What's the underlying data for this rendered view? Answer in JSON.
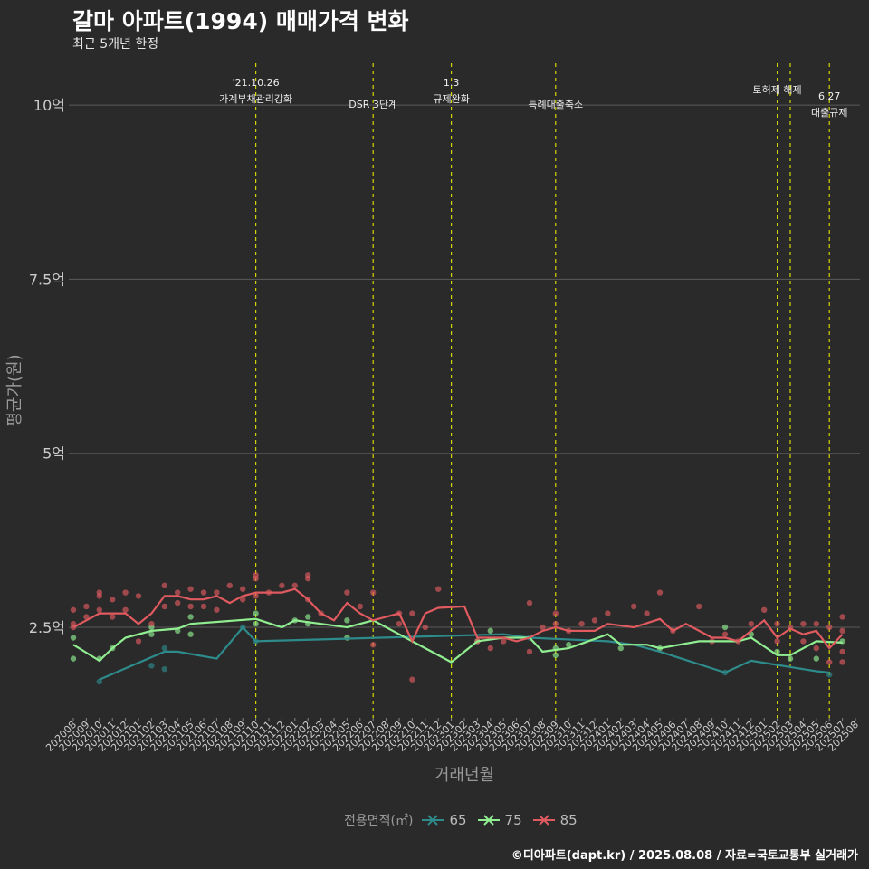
{
  "title": "갈마 아파트(1994) 매매가격 변화",
  "subtitle": "최근 5개년 한정",
  "caption": "©디아파트(dapt.kr) / 2025.08.08 / 자료=국토교통부 실거래가",
  "colors": {
    "background": "#2a2a2b",
    "s65": "#2e8b8b",
    "s75": "#90ee90",
    "s85": "#e05a5f",
    "event_line": "#d4d400",
    "grid": "#5a5a5a"
  },
  "chart_data": {
    "type": "line",
    "xlabel": "거래년월",
    "ylabel": "평균가(원)",
    "ylim": [
      1.2,
      10.6
    ],
    "yticks": [
      {
        "value": 2.5,
        "label": "2.5억"
      },
      {
        "value": 5,
        "label": "5억"
      },
      {
        "value": 7.5,
        "label": "7.5억"
      },
      {
        "value": 10,
        "label": "10억"
      }
    ],
    "x": [
      "202008",
      "202009",
      "202010",
      "202011",
      "202012",
      "202101",
      "202102",
      "202103",
      "202104",
      "202105",
      "202106",
      "202107",
      "202108",
      "202109",
      "202110",
      "202111",
      "202112",
      "202201",
      "202202",
      "202203",
      "202204",
      "202205",
      "202206",
      "202207",
      "202208",
      "202209",
      "202210",
      "202211",
      "202212",
      "202301",
      "202302",
      "202303",
      "202304",
      "202305",
      "202306",
      "202307",
      "202308",
      "202309",
      "202310",
      "202311",
      "202312",
      "202401",
      "202402",
      "202403",
      "202404",
      "202405",
      "202406",
      "202407",
      "202408",
      "202409",
      "202410",
      "202411",
      "202412",
      "202501",
      "202502",
      "202503",
      "202504",
      "202505",
      "202506",
      "202507",
      "202508"
    ],
    "legend_title": "전용면적(㎡)",
    "series": [
      {
        "name": "65",
        "color": "#2e8b8b",
        "points": [
          [
            "202010",
            1.75
          ],
          [
            "202103",
            2.15
          ],
          [
            "202104",
            2.15
          ],
          [
            "202107",
            2.05
          ],
          [
            "202109",
            2.5
          ],
          [
            "202110",
            2.3
          ],
          [
            "202305",
            2.4
          ],
          [
            "202307",
            2.35
          ],
          [
            "202401",
            2.3
          ],
          [
            "202403",
            2.25
          ],
          [
            "202405",
            2.15
          ],
          [
            "202410",
            1.85
          ],
          [
            "202412",
            2.02
          ],
          [
            "202505",
            1.87
          ],
          [
            "202506",
            1.85
          ]
        ],
        "scatter": [
          [
            "202010",
            1.72
          ],
          [
            "202102",
            1.95
          ],
          [
            "202103",
            1.9
          ],
          [
            "202103",
            2.2
          ],
          [
            "202109",
            2.5
          ],
          [
            "202110",
            2.3
          ],
          [
            "202307",
            2.35
          ],
          [
            "202410",
            1.85
          ],
          [
            "202506",
            1.82
          ]
        ]
      },
      {
        "name": "75",
        "color": "#90ee90",
        "points": [
          [
            "202008",
            2.25
          ],
          [
            "202010",
            2.02
          ],
          [
            "202011",
            2.2
          ],
          [
            "202012",
            2.35
          ],
          [
            "202102",
            2.45
          ],
          [
            "202104",
            2.48
          ],
          [
            "202105",
            2.55
          ],
          [
            "202110",
            2.62
          ],
          [
            "202112",
            2.5
          ],
          [
            "202201",
            2.6
          ],
          [
            "202203",
            2.55
          ],
          [
            "202205",
            2.5
          ],
          [
            "202207",
            2.6
          ],
          [
            "202301",
            2.0
          ],
          [
            "202303",
            2.3
          ],
          [
            "202305",
            2.35
          ],
          [
            "202307",
            2.35
          ],
          [
            "202308",
            2.15
          ],
          [
            "202310",
            2.2
          ],
          [
            "202401",
            2.4
          ],
          [
            "202402",
            2.25
          ],
          [
            "202404",
            2.25
          ],
          [
            "202405",
            2.2
          ],
          [
            "202408",
            2.3
          ],
          [
            "202411",
            2.3
          ],
          [
            "202412",
            2.35
          ],
          [
            "202502",
            2.1
          ],
          [
            "202503",
            2.1
          ],
          [
            "202505",
            2.3
          ],
          [
            "202507",
            2.28
          ]
        ],
        "scatter": [
          [
            "202008",
            2.05
          ],
          [
            "202008",
            2.35
          ],
          [
            "202010",
            2.05
          ],
          [
            "202011",
            2.2
          ],
          [
            "202102",
            2.4
          ],
          [
            "202102",
            2.5
          ],
          [
            "202104",
            2.45
          ],
          [
            "202105",
            2.4
          ],
          [
            "202105",
            2.65
          ],
          [
            "202110",
            2.7
          ],
          [
            "202110",
            2.55
          ],
          [
            "202201",
            2.6
          ],
          [
            "202202",
            2.55
          ],
          [
            "202202",
            2.65
          ],
          [
            "202205",
            2.35
          ],
          [
            "202205",
            2.6
          ],
          [
            "202303",
            2.3
          ],
          [
            "202304",
            2.45
          ],
          [
            "202309",
            2.1
          ],
          [
            "202309",
            2.2
          ],
          [
            "202310",
            2.25
          ],
          [
            "202402",
            2.2
          ],
          [
            "202405",
            2.2
          ],
          [
            "202410",
            2.5
          ],
          [
            "202412",
            2.4
          ],
          [
            "202502",
            2.15
          ],
          [
            "202503",
            2.05
          ],
          [
            "202505",
            2.05
          ],
          [
            "202507",
            2.3
          ]
        ]
      },
      {
        "name": "85",
        "color": "#e05a5f",
        "points": [
          [
            "202008",
            2.5
          ],
          [
            "202009",
            2.6
          ],
          [
            "202010",
            2.7
          ],
          [
            "202011",
            2.7
          ],
          [
            "202012",
            2.7
          ],
          [
            "202101",
            2.55
          ],
          [
            "202102",
            2.7
          ],
          [
            "202103",
            2.95
          ],
          [
            "202104",
            2.95
          ],
          [
            "202105",
            2.9
          ],
          [
            "202106",
            2.9
          ],
          [
            "202107",
            2.95
          ],
          [
            "202108",
            2.85
          ],
          [
            "202109",
            2.95
          ],
          [
            "202110",
            3.0
          ],
          [
            "202111",
            3.0
          ],
          [
            "202112",
            3.0
          ],
          [
            "202201",
            3.05
          ],
          [
            "202202",
            2.9
          ],
          [
            "202203",
            2.7
          ],
          [
            "202204",
            2.6
          ],
          [
            "202205",
            2.85
          ],
          [
            "202206",
            2.7
          ],
          [
            "202207",
            2.6
          ],
          [
            "202209",
            2.7
          ],
          [
            "202210",
            2.3
          ],
          [
            "202211",
            2.7
          ],
          [
            "202212",
            2.78
          ],
          [
            "202302",
            2.8
          ],
          [
            "202303",
            2.35
          ],
          [
            "202304",
            2.35
          ],
          [
            "202305",
            2.35
          ],
          [
            "202306",
            2.3
          ],
          [
            "202307",
            2.35
          ],
          [
            "202308",
            2.45
          ],
          [
            "202309",
            2.5
          ],
          [
            "202310",
            2.45
          ],
          [
            "202311",
            2.45
          ],
          [
            "202312",
            2.45
          ],
          [
            "202401",
            2.55
          ],
          [
            "202403",
            2.5
          ],
          [
            "202405",
            2.62
          ],
          [
            "202406",
            2.45
          ],
          [
            "202407",
            2.55
          ],
          [
            "202409",
            2.35
          ],
          [
            "202410",
            2.35
          ],
          [
            "202411",
            2.3
          ],
          [
            "202412",
            2.45
          ],
          [
            "202501",
            2.6
          ],
          [
            "202502",
            2.35
          ],
          [
            "202503",
            2.48
          ],
          [
            "202504",
            2.4
          ],
          [
            "202505",
            2.45
          ],
          [
            "202506",
            2.2
          ],
          [
            "202507",
            2.4
          ]
        ],
        "scatter": [
          [
            "202008",
            2.5
          ],
          [
            "202008",
            2.55
          ],
          [
            "202008",
            2.75
          ],
          [
            "202009",
            2.65
          ],
          [
            "202009",
            2.8
          ],
          [
            "202010",
            2.75
          ],
          [
            "202010",
            2.95
          ],
          [
            "202010",
            3.0
          ],
          [
            "202011",
            2.65
          ],
          [
            "202011",
            2.9
          ],
          [
            "202012",
            2.75
          ],
          [
            "202012",
            3.0
          ],
          [
            "202101",
            2.3
          ],
          [
            "202101",
            2.95
          ],
          [
            "202102",
            2.55
          ],
          [
            "202103",
            2.8
          ],
          [
            "202103",
            3.1
          ],
          [
            "202104",
            2.85
          ],
          [
            "202104",
            3.0
          ],
          [
            "202105",
            2.8
          ],
          [
            "202105",
            3.05
          ],
          [
            "202106",
            2.8
          ],
          [
            "202106",
            3.0
          ],
          [
            "202107",
            2.75
          ],
          [
            "202107",
            3.0
          ],
          [
            "202108",
            3.1
          ],
          [
            "202109",
            2.9
          ],
          [
            "202109",
            3.05
          ],
          [
            "202110",
            2.95
          ],
          [
            "202110",
            3.25
          ],
          [
            "202110",
            3.2
          ],
          [
            "202111",
            3.0
          ],
          [
            "202112",
            3.1
          ],
          [
            "202201",
            3.1
          ],
          [
            "202202",
            2.9
          ],
          [
            "202202",
            3.25
          ],
          [
            "202202",
            3.2
          ],
          [
            "202203",
            2.7
          ],
          [
            "202205",
            3.0
          ],
          [
            "202206",
            2.8
          ],
          [
            "202207",
            2.25
          ],
          [
            "202207",
            3.0
          ],
          [
            "202209",
            2.55
          ],
          [
            "202209",
            2.7
          ],
          [
            "202210",
            1.75
          ],
          [
            "202210",
            2.7
          ],
          [
            "202211",
            2.5
          ],
          [
            "202212",
            3.05
          ],
          [
            "202303",
            2.3
          ],
          [
            "202304",
            2.2
          ],
          [
            "202305",
            2.3
          ],
          [
            "202307",
            2.15
          ],
          [
            "202307",
            2.85
          ],
          [
            "202308",
            2.5
          ],
          [
            "202309",
            2.7
          ],
          [
            "202309",
            2.55
          ],
          [
            "202310",
            2.45
          ],
          [
            "202311",
            2.55
          ],
          [
            "202312",
            2.6
          ],
          [
            "202401",
            2.7
          ],
          [
            "202403",
            2.8
          ],
          [
            "202404",
            2.7
          ],
          [
            "202405",
            3.0
          ],
          [
            "202406",
            2.45
          ],
          [
            "202408",
            2.8
          ],
          [
            "202409",
            2.3
          ],
          [
            "202410",
            2.4
          ],
          [
            "202411",
            2.3
          ],
          [
            "202412",
            2.55
          ],
          [
            "202501",
            2.75
          ],
          [
            "202502",
            2.55
          ],
          [
            "202502",
            2.3
          ],
          [
            "202503",
            2.5
          ],
          [
            "202504",
            2.3
          ],
          [
            "202504",
            2.55
          ],
          [
            "202505",
            2.2
          ],
          [
            "202505",
            2.55
          ],
          [
            "202506",
            2.0
          ],
          [
            "202506",
            2.5
          ],
          [
            "202507",
            2.0
          ],
          [
            "202507",
            2.15
          ],
          [
            "202507",
            2.45
          ],
          [
            "202507",
            2.65
          ]
        ]
      }
    ],
    "annotations": [
      {
        "x": "202110",
        "lines": [
          "'21.10.26",
          "가계부채관리강화"
        ]
      },
      {
        "x": "202207",
        "lines": [
          "DSR 3단계"
        ]
      },
      {
        "x": "202301",
        "lines": [
          "1.3",
          "규제완화"
        ]
      },
      {
        "x": "202309",
        "lines": [
          "특례대출축소"
        ]
      },
      {
        "x": "202502",
        "lines": [
          "토허제 해제"
        ]
      },
      {
        "x": "202503",
        "lines": []
      },
      {
        "x": "202506",
        "lines": [
          "6.27",
          "대출규제"
        ]
      }
    ]
  }
}
